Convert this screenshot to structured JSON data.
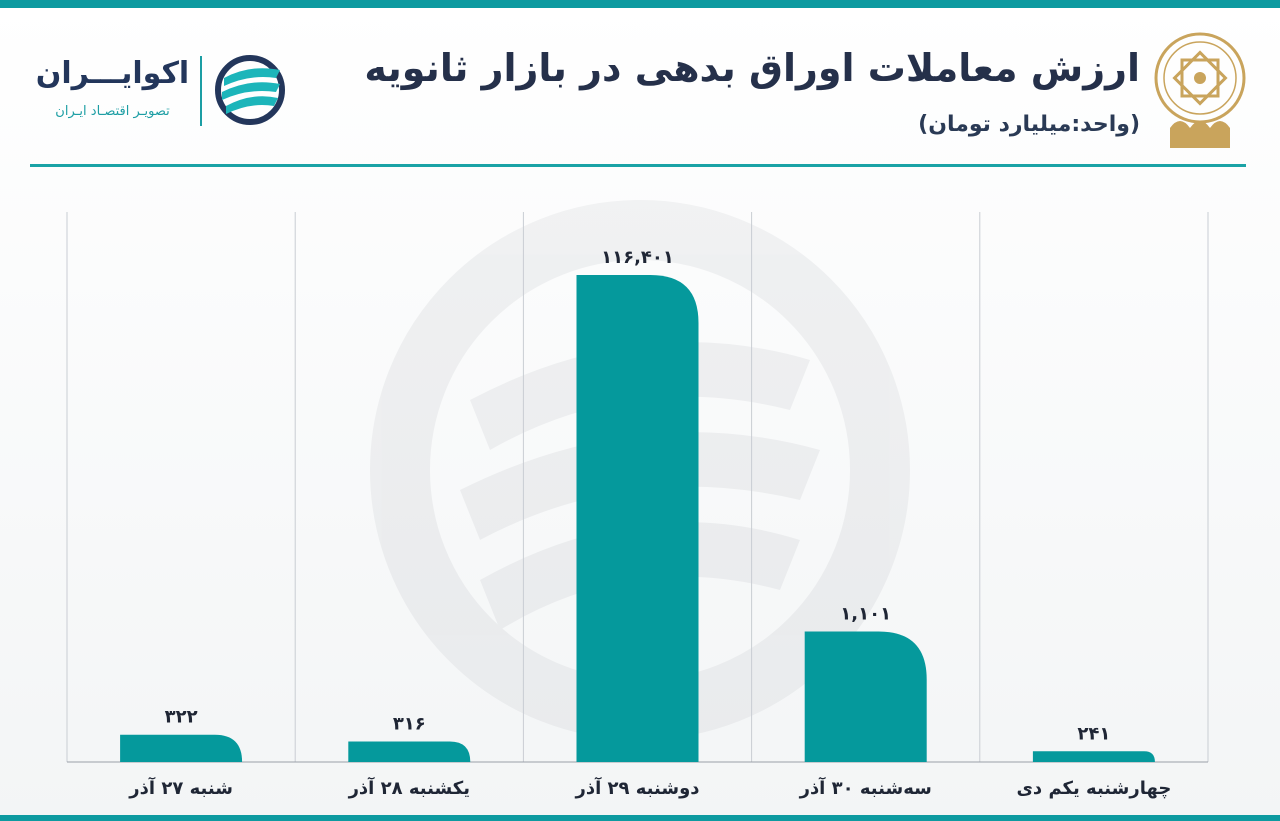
{
  "header": {
    "title": "ارزش معاملات اوراق بدهی در بازار ثانویه",
    "subtitle": "(واحد:میلیارد تومان)"
  },
  "brand": {
    "name": "اکوایـــران",
    "tagline": "تصویـر اقتصـاد ایـران"
  },
  "colors": {
    "bar": "#05999c",
    "accent": "#0d9aa0",
    "title": "#25304a",
    "gold": "#c9a45c"
  },
  "chart_data": {
    "type": "bar",
    "categories": [
      "شنبه ۲۷ آذر",
      "یکشنبه ۲۸ آذر",
      "دوشنبه ۲۹ آذر",
      "سه‌شنبه ۳۰ آذر",
      "چهارشنبه یکم دی"
    ],
    "values": [
      322,
      316,
      116401,
      1101,
      241
    ],
    "value_labels": [
      "۳۲۲",
      "۳۱۶",
      "۱۱۶,۴۰۱",
      "۱,۱۰۱",
      "۲۴۱"
    ],
    "axis_scale": "non-linear (display)",
    "display_heights": [
      0.056,
      0.042,
      1.0,
      0.268,
      0.022
    ],
    "grid": "vertical separators",
    "legend": "none"
  }
}
